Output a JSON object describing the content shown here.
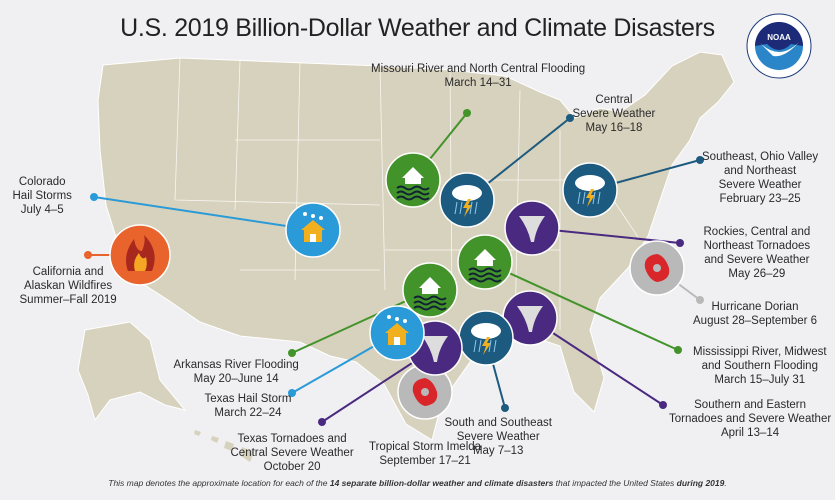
{
  "title": "U.S. 2019 Billion-Dollar Weather and Climate Disasters",
  "logo": {
    "text": "NOAA",
    "ring_text": "NATIONAL OCEANIC AND ATMOSPHERIC ADMINISTRATION · U.S. DEPARTMENT OF COMMERCE"
  },
  "colors": {
    "flooding": "#43932b",
    "severe_weather": "#1d5a7f",
    "hail": "#2a9ad8",
    "tornado": "#4a2a80",
    "wildfire": "#e8642c",
    "tropical_cyclone": "#b9b9b9",
    "land": "#d7d2bd"
  },
  "events": [
    {
      "id": "missouri",
      "type": "flooding",
      "icon": "flood-house-icon",
      "lines": [
        "Missouri River and North Central Flooding",
        "March 14–31"
      ]
    },
    {
      "id": "central",
      "type": "severe_weather",
      "icon": "storm-cloud-icon",
      "lines": [
        "Central",
        "Severe Weather",
        "May 16–18"
      ]
    },
    {
      "id": "southeast_ohio",
      "type": "severe_weather",
      "icon": "storm-cloud-icon",
      "lines": [
        "Southeast, Ohio Valley",
        "and Northeast",
        "Severe Weather",
        "February 23–25"
      ]
    },
    {
      "id": "rockies",
      "type": "tornado",
      "icon": "tornado-icon",
      "lines": [
        "Rockies, Central and",
        "Northeast Tornadoes",
        "and Severe Weather",
        "May 26–29"
      ]
    },
    {
      "id": "dorian",
      "type": "tropical_cyclone",
      "icon": "hurricane-icon",
      "lines": [
        "Hurricane Dorian",
        "August 28–September 6"
      ]
    },
    {
      "id": "mississippi",
      "type": "flooding",
      "icon": "flood-house-icon",
      "lines": [
        "Mississippi River, Midwest",
        "and Southern Flooding",
        "March 15–July 31"
      ]
    },
    {
      "id": "southern_eastern",
      "type": "tornado",
      "icon": "tornado-icon",
      "lines": [
        "Southern and Eastern",
        "Tornadoes and Severe Weather",
        "April 13–14"
      ]
    },
    {
      "id": "south_southeast",
      "type": "severe_weather",
      "icon": "storm-cloud-icon",
      "lines": [
        "South and Southeast",
        "Severe Weather",
        "May 7–13"
      ]
    },
    {
      "id": "imelda",
      "type": "tropical_cyclone",
      "icon": "hurricane-icon",
      "lines": [
        "Tropical Storm Imelda",
        "September 17–21"
      ]
    },
    {
      "id": "texas_tornadoes",
      "type": "tornado",
      "icon": "tornado-icon",
      "lines": [
        "Texas Tornadoes and",
        "Central Severe Weather",
        "October 20"
      ]
    },
    {
      "id": "texas_hail",
      "type": "hail",
      "icon": "hail-house-icon",
      "lines": [
        "Texas Hail Storm",
        "March 22–24"
      ]
    },
    {
      "id": "arkansas",
      "type": "flooding",
      "icon": "flood-house-icon",
      "lines": [
        "Arkansas River Flooding",
        "May 20–June 14"
      ]
    },
    {
      "id": "california",
      "type": "wildfire",
      "icon": "wildfire-icon",
      "lines": [
        "California and",
        "Alaskan Wildfires",
        "Summer–Fall 2019"
      ]
    },
    {
      "id": "colorado",
      "type": "hail",
      "icon": "hail-house-icon",
      "lines": [
        "Colorado",
        "Hail Storms",
        "July 4–5"
      ]
    }
  ],
  "footer": {
    "pre": "This map denotes the approximate location for each of the ",
    "bold1": "14 separate billion-dollar weather and climate disasters",
    "mid": " that impacted the United States ",
    "bold2": "during 2019",
    "end": "."
  }
}
